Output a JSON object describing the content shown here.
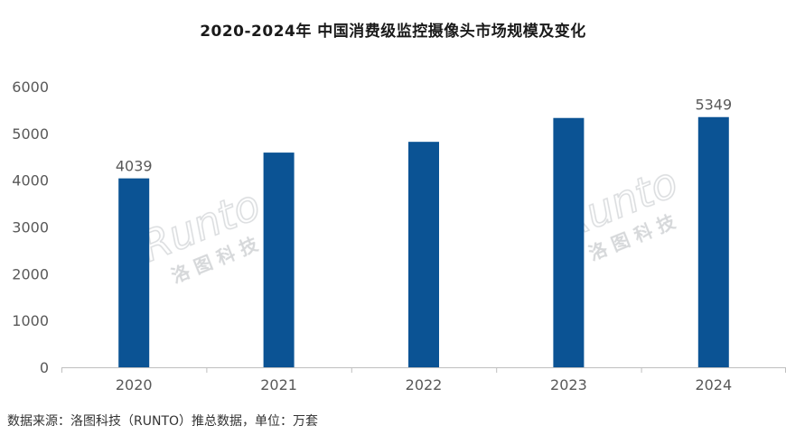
{
  "title": "2020-2024年 中国消费级监控摄像头市场规模及变化",
  "footer": "数据来源：洛图科技（RUNTO）推总数据，单位：万套",
  "watermark": {
    "brand": "Runto",
    "cn": "洛 图 科 技"
  },
  "colors": {
    "bar": "#0b5394",
    "axis": "#bfbfbf",
    "text": "#595959"
  },
  "chart_data": {
    "type": "bar",
    "categories": [
      "2020",
      "2021",
      "2022",
      "2023",
      "2024"
    ],
    "values": [
      4039,
      4590,
      4820,
      5330,
      5349
    ],
    "data_labels": [
      {
        "index": 0,
        "text": "4039"
      },
      {
        "index": 4,
        "text": "5349"
      }
    ],
    "yticks": [
      0,
      1000,
      2000,
      3000,
      4000,
      5000,
      6000
    ],
    "ylim": [
      0,
      6000
    ],
    "xlabel": "",
    "ylabel": "",
    "grid": false,
    "legend": "none"
  }
}
